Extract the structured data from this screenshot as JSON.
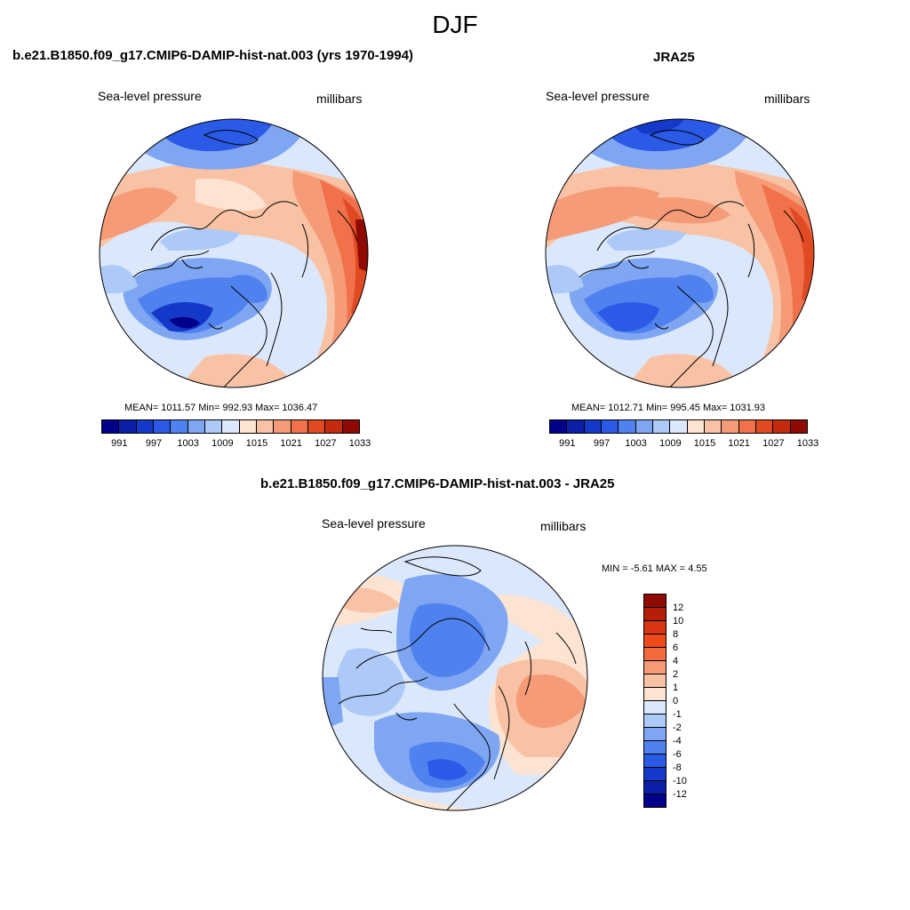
{
  "title": "DJF",
  "panels": [
    {
      "title": "b.e21.B1850.f09_g17.CMIP6-DAMIP-hist-nat.003 (yrs 1970-1994)",
      "variable": "Sea-level pressure",
      "units": "millibars",
      "stats": "MEAN= 1011.57  Min= 992.93  Max= 1036.47"
    },
    {
      "title": "JRA25",
      "variable": "Sea-level pressure",
      "units": "millibars",
      "stats": "MEAN= 1012.71  Min= 995.45  Max= 1031.93"
    },
    {
      "title": "b.e21.B1850.f09_g17.CMIP6-DAMIP-hist-nat.003 - JRA25",
      "variable": "Sea-level pressure",
      "units": "millibars",
      "stats": "MIN =  -5.61 MAX =   4.55"
    }
  ],
  "colorbar_abs": {
    "colors": [
      "#00008b",
      "#0a1fa8",
      "#1438c8",
      "#2a5ae6",
      "#4f82ef",
      "#7fa6f2",
      "#adc9f7",
      "#dbe8fc",
      "#fde4d2",
      "#f9c2a4",
      "#f69b78",
      "#f0714a",
      "#e04a22",
      "#c42a0e",
      "#8f0a02"
    ],
    "labels": [
      "991",
      "997",
      "1003",
      "1009",
      "1015",
      "1021",
      "1027",
      "1033"
    ]
  },
  "colorbar_diff": {
    "colors": [
      "#8f0a02",
      "#b51e08",
      "#d93512",
      "#f04a18",
      "#f46a3a",
      "#f69b78",
      "#f9c2a4",
      "#fde4d2",
      "#dbe8fc",
      "#adc9f7",
      "#7fa6f2",
      "#4f82ef",
      "#2a5ae6",
      "#1438c8",
      "#0a1fa8",
      "#00008b"
    ],
    "labels": [
      "12",
      "10",
      "8",
      "6",
      "4",
      "2",
      "1",
      "0",
      "-1",
      "-2",
      "-4",
      "-6",
      "-8",
      "-10",
      "-12"
    ]
  }
}
